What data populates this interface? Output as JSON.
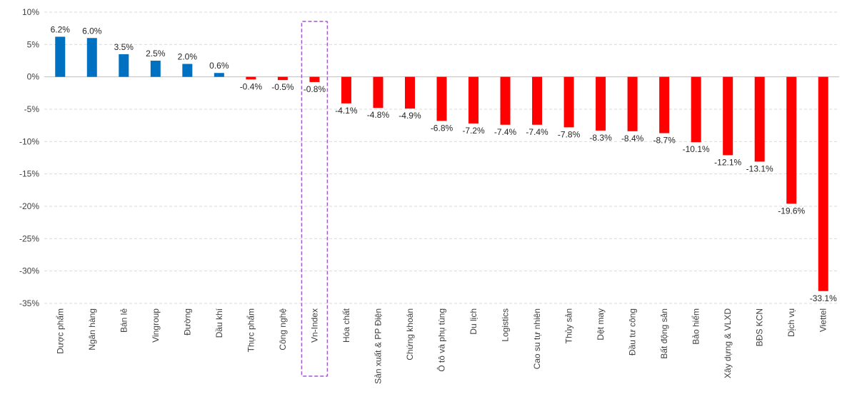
{
  "chart_data": {
    "type": "bar",
    "title": "",
    "xlabel": "",
    "ylabel": "",
    "ylim": [
      -35,
      10
    ],
    "yticks": [
      10,
      5,
      0,
      -5,
      -10,
      -15,
      -20,
      -25,
      -30,
      -35
    ],
    "ytick_labels": [
      "10%",
      "5%",
      "0%",
      "-5%",
      "-10%",
      "-15%",
      "-20%",
      "-25%",
      "-30%",
      "-35%"
    ],
    "grid": true,
    "categories": [
      "Dược phẩm",
      "Ngân hàng",
      "Bán lẻ",
      "Vingroup",
      "Đường",
      "Dầu khí",
      "Thực phẩm",
      "Công nghệ",
      "Vn-Index",
      "Hóa chất",
      "Sản xuất & PP Điện",
      "Chứng khoán",
      "Ô tô và phụ tùng",
      "Du lịch",
      "Logistics",
      "Cao su tự nhiên",
      "Thủy sản",
      "Dệt may",
      "Đầu tư công",
      "Bất động sản",
      "Bảo hiểm",
      "Xây dựng & VLXD",
      "BĐS KCN",
      "Dịch vụ",
      "Viettel"
    ],
    "values": [
      6.2,
      6.0,
      3.5,
      2.5,
      2.0,
      0.6,
      -0.4,
      -0.5,
      -0.8,
      -4.1,
      -4.8,
      -4.9,
      -6.8,
      -7.2,
      -7.4,
      -7.4,
      -7.8,
      -8.3,
      -8.4,
      -8.7,
      -10.1,
      -12.1,
      -13.1,
      -19.6,
      -33.1
    ],
    "value_labels": [
      "6.2%",
      "6.0%",
      "3.5%",
      "2.5%",
      "2.0%",
      "0.6%",
      "-0.4%",
      "-0.5%",
      "-0.8%",
      "-4.1%",
      "-4.8%",
      "-4.9%",
      "-6.8%",
      "-7.2%",
      "-7.4%",
      "-7.4%",
      "-7.8%",
      "-8.3%",
      "-8.4%",
      "-8.7%",
      "-10.1%",
      "-12.1%",
      "-13.1%",
      "-19.6%",
      "-33.1%"
    ],
    "highlighted_category": "Vn-Index",
    "colors": {
      "positive": "#0070c0",
      "negative": "#ff0000",
      "highlight_box": "#9b59d0"
    }
  }
}
